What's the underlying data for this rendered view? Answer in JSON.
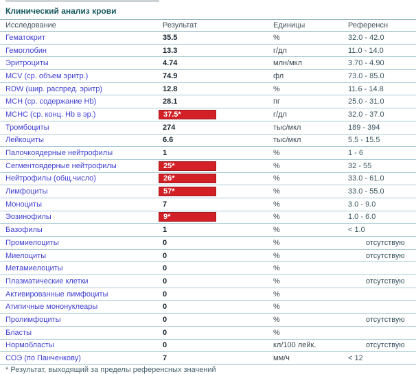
{
  "page": {
    "title": "Клинический анализ крови",
    "footnote": "* Результат, выходящий за пределы референсных значений"
  },
  "table": {
    "columns": {
      "test": "Исследование",
      "result": "Результат",
      "units": "Единицы",
      "reference": "Референсн"
    },
    "rows": [
      {
        "name": "Гематокрит",
        "result": "35.5",
        "abnormal": false,
        "units": "%",
        "ref": "32.0 - 42.0",
        "ref_absent": false
      },
      {
        "name": "Гемоглобин",
        "result": "13.3",
        "abnormal": false,
        "units": "г/дл",
        "ref": "11.0 - 14.0",
        "ref_absent": false
      },
      {
        "name": "Эритроциты",
        "result": "4.74",
        "abnormal": false,
        "units": "млн/мкл",
        "ref": "3.70 - 4.90",
        "ref_absent": false
      },
      {
        "name": "MCV (ср. объем эритр.)",
        "result": "74.9",
        "abnormal": false,
        "units": "фл",
        "ref": "73.0 - 85.0",
        "ref_absent": false
      },
      {
        "name": "RDW (шир. распред. эритр)",
        "result": "12.8",
        "abnormal": false,
        "units": "%",
        "ref": "11.6 - 14.8",
        "ref_absent": false
      },
      {
        "name": "MCH (ср. содержание Hb)",
        "result": "28.1",
        "abnormal": false,
        "units": "пг",
        "ref": "25.0 - 31.0",
        "ref_absent": false
      },
      {
        "name": "MCHC (ср. конц. Hb в эр.)",
        "result": "37.5*",
        "abnormal": true,
        "units": "г/дл",
        "ref": "32.0 - 37.0",
        "ref_absent": false
      },
      {
        "name": "Тромбоциты",
        "result": "274",
        "abnormal": false,
        "units": "тыс/мкл",
        "ref": "189 - 394",
        "ref_absent": false
      },
      {
        "name": "Лейкоциты",
        "result": "6.6",
        "abnormal": false,
        "units": "тыс/мкл",
        "ref": "5.5 - 15.5",
        "ref_absent": false
      },
      {
        "name": "Палочкоядерные нейтрофилы",
        "result": "1",
        "abnormal": false,
        "units": "%",
        "ref": "1 - 6",
        "ref_absent": false
      },
      {
        "name": "Сегментоядерные нейтрофилы",
        "result": "25*",
        "abnormal": true,
        "units": "%",
        "ref": "32 - 55",
        "ref_absent": false
      },
      {
        "name": "Нейтрофилы (общ.число)",
        "result": "26*",
        "abnormal": true,
        "units": "%",
        "ref": "33.0 - 61.0",
        "ref_absent": false
      },
      {
        "name": "Лимфоциты",
        "result": "57*",
        "abnormal": true,
        "units": "%",
        "ref": "33.0 - 55.0",
        "ref_absent": false
      },
      {
        "name": "Моноциты",
        "result": "7",
        "abnormal": false,
        "units": "%",
        "ref": "3.0 - 9.0",
        "ref_absent": false
      },
      {
        "name": "Эозинофилы",
        "result": "9*",
        "abnormal": true,
        "units": "%",
        "ref": "1.0 - 6.0",
        "ref_absent": false
      },
      {
        "name": "Базофилы",
        "result": "1",
        "abnormal": false,
        "units": "%",
        "ref": "< 1.0",
        "ref_absent": false
      },
      {
        "name": "Промиелоциты",
        "result": "0",
        "abnormal": false,
        "units": "%",
        "ref": "отсутствую",
        "ref_absent": true
      },
      {
        "name": "Миелоциты",
        "result": "0",
        "abnormal": false,
        "units": "%",
        "ref": "отсутствую",
        "ref_absent": true
      },
      {
        "name": "Метамиелоциты",
        "result": "0",
        "abnormal": false,
        "units": "%",
        "ref": "",
        "ref_absent": false
      },
      {
        "name": "Плазматические клетки",
        "result": "0",
        "abnormal": false,
        "units": "%",
        "ref": "отсутствую",
        "ref_absent": true
      },
      {
        "name": "Активированные лимфоциты",
        "result": "0",
        "abnormal": false,
        "units": "%",
        "ref": "",
        "ref_absent": false
      },
      {
        "name": "Атипичные мононуклеары",
        "result": "0",
        "abnormal": false,
        "units": "%",
        "ref": "",
        "ref_absent": false
      },
      {
        "name": "Пролимфоциты",
        "result": "0",
        "abnormal": false,
        "units": "%",
        "ref": "отсутствую",
        "ref_absent": true
      },
      {
        "name": "Бласты",
        "result": "0",
        "abnormal": false,
        "units": "%",
        "ref": "",
        "ref_absent": false
      },
      {
        "name": "Нормобласты",
        "result": "0",
        "abnormal": false,
        "units": "кл/100 лейк.",
        "ref": "отсутствую",
        "ref_absent": true
      },
      {
        "name": "СОЭ (по Панченкову)",
        "result": "7",
        "abnormal": false,
        "units": "мм/ч",
        "ref": "< 12",
        "ref_absent": false
      }
    ]
  },
  "colors": {
    "title": "#14585f",
    "test_link": "#3e3ed1",
    "result_value": "#17242f",
    "abnormal_bg": "#d22026",
    "abnormal_border": "#9d1a1f",
    "row_line": "#a9cbd6",
    "header_line": "#8eb2bf"
  }
}
